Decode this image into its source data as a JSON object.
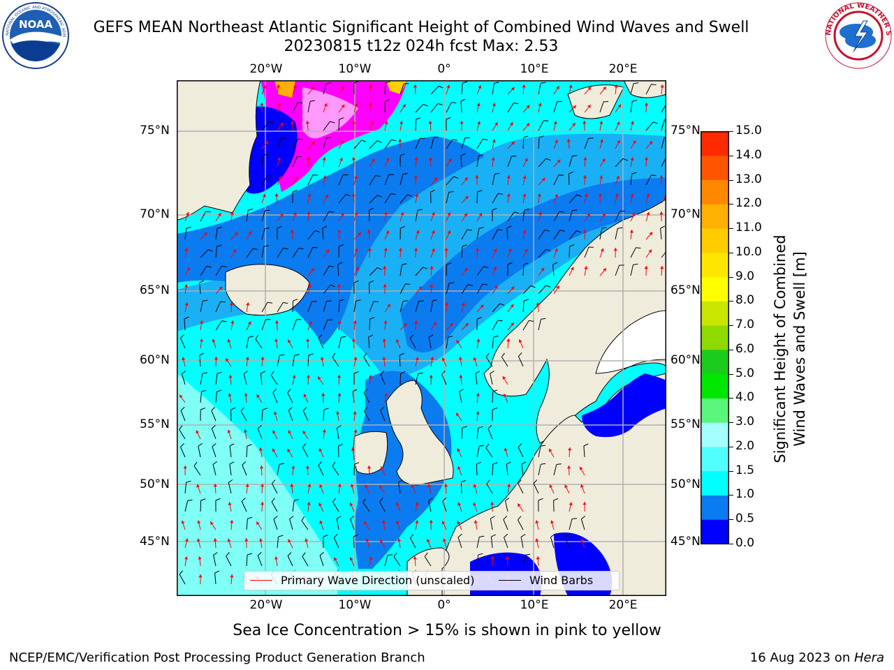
{
  "header": {
    "title_line1": "GEFS MEAN Northeast Atlantic Significant Height of Combined Wind Waves and Swell",
    "title_line2": "20230815 t12z 024h fcst   Max: 2.53"
  },
  "logos": {
    "left": {
      "name": "noaa-logo",
      "text": "NOAA",
      "ring_text": "NATIONAL OCEANIC AND ATMOSPHERIC ADMINISTRATION · U.S. DEPARTMENT OF COMMERCE"
    },
    "right": {
      "name": "nws-logo",
      "ring_text": "NATIONAL WEATHER SERVICE"
    }
  },
  "map": {
    "lon_labels": [
      "20°W",
      "10°W",
      "0°",
      "10°E",
      "20°E"
    ],
    "lat_labels": [
      "75°N",
      "70°N",
      "65°N",
      "60°N",
      "55°N",
      "50°N",
      "45°N"
    ],
    "colors": {
      "land": "#efecdc",
      "ocean_low": "#0b7bf0",
      "ocean_mid": "#1ab0f5",
      "ocean_high": "#00ffff",
      "ocean_vhigh": "#7ffff5",
      "very_low": "#0000ff",
      "ice": "#ff00ff",
      "ice_high": "#ffb000",
      "wave_arrow": "#ff0000",
      "wind_barb": "#000000",
      "grid": "#b0b0b0"
    }
  },
  "legend": {
    "wave_label": "Primary Wave Direction (unscaled)",
    "wind_label": "Wind Barbs"
  },
  "colorbar": {
    "title_line1": "Significant Height of Combined",
    "title_line2": "Wind Waves and Swell [m]",
    "ticks": [
      "15.0",
      "14.0",
      "13.0",
      "12.0",
      "11.0",
      "10.0",
      "9.0",
      "8.0",
      "7.0",
      "6.0",
      "5.0",
      "4.0",
      "3.0",
      "2.0",
      "1.5",
      "1.0",
      "0.5",
      "0.0"
    ],
    "colors": [
      "#0000ff",
      "#0b7bf0",
      "#00d8ff",
      "#00ffff",
      "#52ffff",
      "#a6ffff",
      "#59f57c",
      "#00e600",
      "#1ccc1c",
      "#4dd600",
      "#8ed900",
      "#c8e600",
      "#ffff00",
      "#ffe600",
      "#ffcc00",
      "#ffb000",
      "#ff8800",
      "#ff5500",
      "#ff2a00",
      "#ff0000"
    ]
  },
  "caption": "Sea Ice Concentration > 15% is shown in pink to yellow",
  "footer": {
    "left": "NCEP/EMC/Verification Post Processing Product Generation Branch",
    "date": "16 Aug 2023 on ",
    "machine": "Hera"
  }
}
